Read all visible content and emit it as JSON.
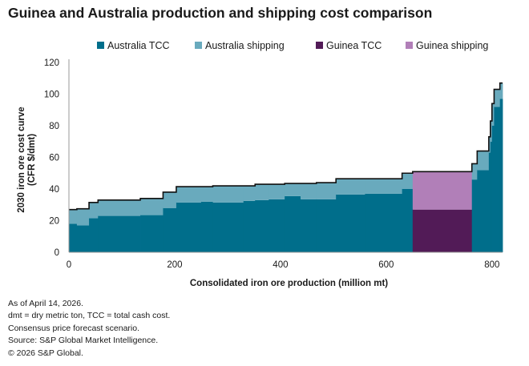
{
  "title": "Guinea and Australia production and shipping cost comparison",
  "notes": [
    "As of April 14, 2026.",
    "dmt = dry metric ton, TCC = total cash cost.",
    "Consensus price forecast scenario.",
    "Source: S&P Global Market Intelligence.",
    "© 2026 S&P Global."
  ],
  "colors": {
    "australia_tcc": "#006e8b",
    "australia_shipping": "#69aabd",
    "guinea_tcc": "#521b57",
    "guinea_shipping": "#b17fb8",
    "outline": "#111111",
    "axis": "#999999"
  },
  "chart_data": {
    "type": "area",
    "subtype": "stepped cost curve (stacked)",
    "title": "Guinea and Australia production and shipping cost comparison",
    "xlabel": "Consolidated iron ore production (million mt)",
    "ylabel": "2030 iron ore cost curve (CFR $/dmt)",
    "xlim": [
      0,
      820
    ],
    "ylim": [
      0,
      120
    ],
    "xticks": [
      0,
      200,
      400,
      600,
      800
    ],
    "yticks": [
      0,
      20,
      40,
      60,
      80,
      100,
      120
    ],
    "grid": false,
    "legend_position": "top",
    "legend": [
      "Australia TCC",
      "Australia shipping",
      "Guinea TCC",
      "Guinea shipping"
    ],
    "series": [
      {
        "name": "Australia TCC",
        "region": "Australia",
        "component": "TCC"
      },
      {
        "name": "Australia shipping",
        "region": "Australia",
        "component": "shipping"
      },
      {
        "name": "Guinea TCC",
        "region": "Guinea",
        "component": "TCC"
      },
      {
        "name": "Guinea shipping",
        "region": "Guinea",
        "component": "shipping"
      }
    ],
    "segments": [
      {
        "x0": 0,
        "x1": 15,
        "region": "Australia",
        "tcc": 18,
        "shipping": 9
      },
      {
        "x0": 15,
        "x1": 38,
        "region": "Australia",
        "tcc": 17,
        "shipping": 10.5
      },
      {
        "x0": 38,
        "x1": 55,
        "region": "Australia",
        "tcc": 21.5,
        "shipping": 10
      },
      {
        "x0": 55,
        "x1": 135,
        "region": "Australia",
        "tcc": 23,
        "shipping": 10
      },
      {
        "x0": 135,
        "x1": 178,
        "region": "Australia",
        "tcc": 23.5,
        "shipping": 10.5
      },
      {
        "x0": 178,
        "x1": 203,
        "region": "Australia",
        "tcc": 28,
        "shipping": 10
      },
      {
        "x0": 203,
        "x1": 250,
        "region": "Australia",
        "tcc": 31.5,
        "shipping": 10
      },
      {
        "x0": 250,
        "x1": 272,
        "region": "Australia",
        "tcc": 32,
        "shipping": 9.5
      },
      {
        "x0": 272,
        "x1": 330,
        "region": "Australia",
        "tcc": 31.5,
        "shipping": 10.5
      },
      {
        "x0": 330,
        "x1": 352,
        "region": "Australia",
        "tcc": 32.5,
        "shipping": 9.5
      },
      {
        "x0": 352,
        "x1": 378,
        "region": "Australia",
        "tcc": 33,
        "shipping": 10
      },
      {
        "x0": 378,
        "x1": 408,
        "region": "Australia",
        "tcc": 33.5,
        "shipping": 9.5
      },
      {
        "x0": 408,
        "x1": 438,
        "region": "Australia",
        "tcc": 35.5,
        "shipping": 8
      },
      {
        "x0": 438,
        "x1": 468,
        "region": "Australia",
        "tcc": 33.5,
        "shipping": 10
      },
      {
        "x0": 468,
        "x1": 505,
        "region": "Australia",
        "tcc": 33.5,
        "shipping": 10.5
      },
      {
        "x0": 505,
        "x1": 560,
        "region": "Australia",
        "tcc": 36.5,
        "shipping": 10
      },
      {
        "x0": 560,
        "x1": 630,
        "region": "Australia",
        "tcc": 37,
        "shipping": 9.5
      },
      {
        "x0": 630,
        "x1": 650,
        "region": "Australia",
        "tcc": 40,
        "shipping": 10
      },
      {
        "x0": 650,
        "x1": 762,
        "region": "Guinea",
        "tcc": 27,
        "shipping": 24
      },
      {
        "x0": 762,
        "x1": 772,
        "region": "Australia",
        "tcc": 46,
        "shipping": 10
      },
      {
        "x0": 772,
        "x1": 794,
        "region": "Australia",
        "tcc": 52,
        "shipping": 12
      },
      {
        "x0": 794,
        "x1": 797,
        "region": "Australia",
        "tcc": 63,
        "shipping": 10
      },
      {
        "x0": 797,
        "x1": 800,
        "region": "Australia",
        "tcc": 70,
        "shipping": 13
      },
      {
        "x0": 800,
        "x1": 804,
        "region": "Australia",
        "tcc": 80,
        "shipping": 14
      },
      {
        "x0": 804,
        "x1": 815,
        "region": "Australia",
        "tcc": 92,
        "shipping": 11
      },
      {
        "x0": 815,
        "x1": 820,
        "region": "Australia",
        "tcc": 97,
        "shipping": 10
      }
    ]
  }
}
